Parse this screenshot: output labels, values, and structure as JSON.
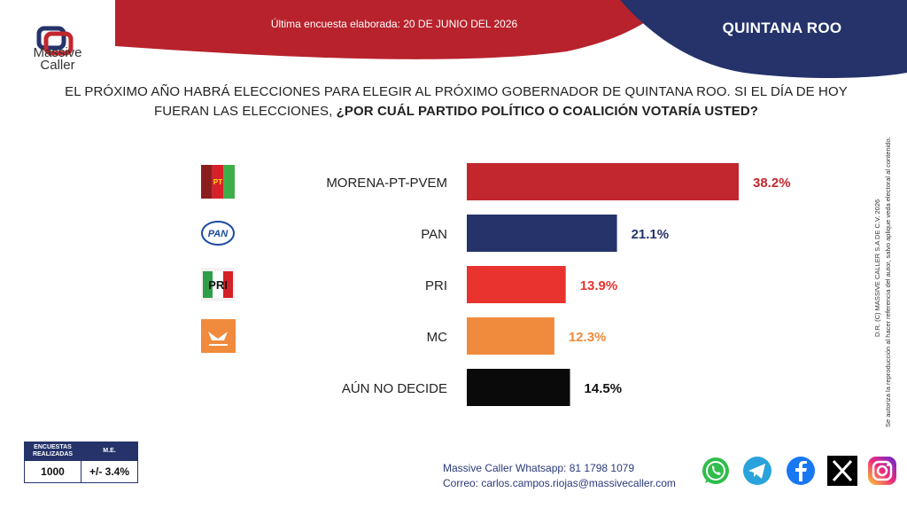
{
  "header": {
    "brand_line1": "Massive",
    "brand_line2": "Caller",
    "survey_note": "Última encuesta elaborada: 20 DE JUNIO DEL 2026",
    "state": "QUINTANA ROO"
  },
  "question": {
    "line1": "EL PRÓXIMO AÑO HABRÁ ELECCIONES PARA ELEGIR AL PRÓXIMO GOBERNADOR DE QUINTANA ROO. SI EL DÍA DE HOY",
    "line2_plain": "FUERAN LAS ELECCIONES, ",
    "line2_bold": "¿POR CUÁL PARTIDO POLÍTICO O COALICIÓN VOTARÍA USTED?"
  },
  "chart_data": {
    "type": "bar",
    "orientation": "horizontal",
    "categories": [
      "MORENA-PT-PVEM",
      "PAN",
      "PRI",
      "MC",
      "AÚN NO DECIDE"
    ],
    "values": [
      38.2,
      21.1,
      13.9,
      12.3,
      14.5
    ],
    "value_labels": [
      "38.2%",
      "21.1%",
      "13.9%",
      "12.3%",
      "14.5%"
    ],
    "colors": [
      "#c1272d",
      "#25336a",
      "#e8332e",
      "#f08a3c",
      "#0a0a0a"
    ],
    "label_colors": [
      "#c1272d",
      "#25336a",
      "#e8332e",
      "#f08a3c",
      "#111111"
    ],
    "logos": [
      "morena-pt-pvem-logo",
      "pan-logo",
      "pri-logo",
      "mc-logo",
      ""
    ],
    "logo_text": [
      "PT",
      "PAN",
      "PRI",
      "",
      ""
    ],
    "title": "",
    "xlabel": "",
    "ylabel": "",
    "xlim": [
      0,
      40
    ],
    "grid": false,
    "legend": "none"
  },
  "side_note": {
    "line1": "D.R. (C) MASSIVE CALLER S.A DE C.V. 2026",
    "line2": "Se autoriza la reproducción al hacer referencia del autor, salvo aplique veda electoral al contenido."
  },
  "stats": {
    "col1_header_line1": "ENCUESTAS",
    "col1_header_line2": "REALIZADAS",
    "col2_header": "M.E.",
    "surveys": "1000",
    "margin": "+/- 3.4%"
  },
  "contact": {
    "whatsapp": "Massive Caller Whatsapp: 81 1798 1079",
    "email": "Correo: carlos.campos.riojas@massivecaller.com"
  },
  "social": [
    "whatsapp-icon",
    "telegram-icon",
    "facebook-icon",
    "x-icon",
    "instagram-icon"
  ],
  "brand_colors": {
    "red": "#c1272d",
    "navy": "#25336a"
  }
}
